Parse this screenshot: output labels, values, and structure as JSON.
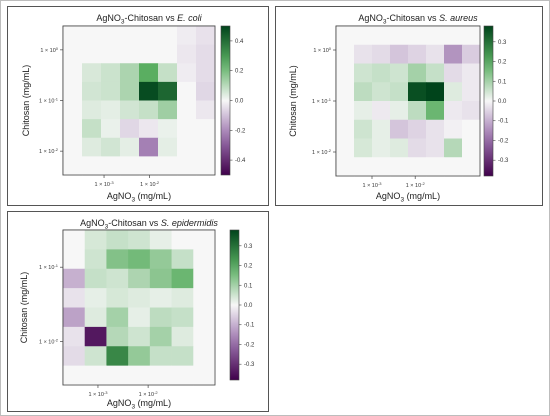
{
  "colors": {
    "negative_max": "#40004b",
    "negative_mid": "#9970ab",
    "neutral": "#f7f7f7",
    "positive_mid": "#5aae61",
    "positive_max": "#00441b"
  },
  "chart_data": [
    {
      "type": "heatmap",
      "title_prefix": "AgNO",
      "title_sub": "3",
      "title_mid": "-Chitosan vs ",
      "title_species": "E. coli",
      "xlabel_prefix": "AgNO",
      "xlabel_sub": "3",
      "xlabel_suffix": " (mg/mL)",
      "ylabel": "Chitosan (mg/mL)",
      "x_scale": "log",
      "y_scale": "log",
      "x_ticks": [
        {
          "label_base": "1 × 10",
          "label_exp": "-3"
        },
        {
          "label_base": "1 × 10",
          "label_exp": "-2"
        }
      ],
      "y_ticks": [
        {
          "label_base": "1 × 10",
          "label_exp": "0"
        },
        {
          "label_base": "1 × 10",
          "label_exp": "-1"
        },
        {
          "label_base": "1 × 10",
          "label_exp": "-2"
        }
      ],
      "colorbar_ticks": [
        "0.4",
        "0.2",
        "0.0",
        "-0.2",
        "-0.4"
      ],
      "colorbar_tick_values": [
        0.4,
        0.2,
        0.0,
        -0.2,
        -0.4
      ],
      "vmin": -0.5,
      "vmax": 0.5,
      "values": [
        [
          0,
          0,
          0,
          0,
          0,
          0,
          -0.02,
          -0.04
        ],
        [
          0,
          0,
          0,
          0,
          0,
          0,
          -0.03,
          -0.05
        ],
        [
          0,
          0.05,
          0.07,
          0.12,
          0.25,
          0.08,
          -0.02,
          -0.05
        ],
        [
          0,
          0.06,
          0.07,
          0.12,
          0.48,
          0.42,
          0,
          -0.06
        ],
        [
          0,
          0.04,
          0.03,
          0.06,
          0.08,
          0.14,
          0,
          -0.03
        ],
        [
          0,
          0.08,
          0.02,
          -0.06,
          -0.03,
          0.02,
          0,
          0
        ],
        [
          0,
          0.04,
          0.06,
          0.03,
          -0.22,
          0.03,
          0,
          0
        ],
        [
          0,
          0,
          0,
          0,
          0,
          0,
          0,
          0
        ]
      ]
    },
    {
      "type": "heatmap",
      "title_prefix": "AgNO",
      "title_sub": "3",
      "title_mid": "-Chitosan vs ",
      "title_species": "S. aureus",
      "xlabel_prefix": "AgNO",
      "xlabel_sub": "3",
      "xlabel_suffix": " (mg/mL)",
      "ylabel": "Chitosan (mg/mL)",
      "x_scale": "log",
      "y_scale": "log",
      "x_ticks": [
        {
          "label_base": "1 × 10",
          "label_exp": "-3"
        },
        {
          "label_base": "1 × 10",
          "label_exp": "-2"
        }
      ],
      "y_ticks": [
        {
          "label_base": "1 × 10",
          "label_exp": "0"
        },
        {
          "label_base": "1 × 10",
          "label_exp": "-1"
        },
        {
          "label_base": "1 × 10",
          "label_exp": "-2"
        }
      ],
      "colorbar_ticks": [
        "0.3",
        "0.2",
        "0.1",
        "0.0",
        "-0.1",
        "-0.2",
        "-0.3"
      ],
      "colorbar_tick_values": [
        0.3,
        0.2,
        0.1,
        0.0,
        -0.1,
        -0.2,
        -0.3
      ],
      "vmin": -0.38,
      "vmax": 0.38,
      "values": [
        [
          0,
          0,
          0,
          0,
          0,
          0,
          0,
          0
        ],
        [
          0,
          -0.03,
          -0.04,
          -0.07,
          -0.05,
          -0.03,
          -0.14,
          -0.06
        ],
        [
          0,
          0.05,
          0.06,
          0.05,
          0.1,
          0.06,
          -0.04,
          -0.02
        ],
        [
          0,
          0.07,
          0.05,
          0.06,
          0.36,
          0.38,
          0.03,
          -0.02
        ],
        [
          0,
          0.02,
          -0.02,
          0.02,
          0.07,
          0.17,
          -0.02,
          -0.03
        ],
        [
          0,
          0.05,
          0.02,
          -0.07,
          -0.05,
          -0.03,
          -0.01,
          0
        ],
        [
          0,
          0.04,
          0.02,
          0.03,
          -0.04,
          -0.03,
          0.08,
          0
        ],
        [
          0,
          0,
          0,
          0,
          0,
          0,
          0,
          0
        ]
      ]
    },
    {
      "type": "heatmap",
      "title_prefix": "AgNO",
      "title_sub": "3",
      "title_mid": "-Chitosan vs ",
      "title_species": "S. epidermidis",
      "xlabel_prefix": "AgNO",
      "xlabel_sub": "3",
      "xlabel_suffix": " (mg/mL)",
      "ylabel": "Chitosan (mg/mL)",
      "x_scale": "log",
      "y_scale": "log",
      "x_ticks": [
        {
          "label_base": "1 × 10",
          "label_exp": "-3"
        },
        {
          "label_base": "1 × 10",
          "label_exp": "-2"
        }
      ],
      "y_ticks": [
        {
          "label_base": "1 × 10",
          "label_exp": "-1"
        },
        {
          "label_base": "1 × 10",
          "label_exp": "-2"
        }
      ],
      "colorbar_ticks": [
        "0.3",
        "0.2",
        "0.1",
        "0.0",
        "-0.1",
        "-0.2",
        "-0.3"
      ],
      "colorbar_tick_values": [
        0.3,
        0.2,
        0.1,
        0.0,
        -0.1,
        -0.2,
        -0.3
      ],
      "vmin": -0.38,
      "vmax": 0.38,
      "values": [
        [
          0,
          0.04,
          0.06,
          0.05,
          0.02,
          0,
          0
        ],
        [
          0,
          0.05,
          0.14,
          0.16,
          0.12,
          0.06,
          0
        ],
        [
          -0.1,
          0.06,
          0.05,
          0.09,
          0.13,
          0.17,
          0
        ],
        [
          -0.03,
          0.02,
          0.04,
          0.03,
          0.02,
          0.03,
          0
        ],
        [
          -0.12,
          0.03,
          0.1,
          0.02,
          0.07,
          0.06,
          0
        ],
        [
          -0.03,
          -0.34,
          0.08,
          0.05,
          0.1,
          0.03,
          0
        ],
        [
          -0.04,
          0.05,
          0.26,
          0.12,
          0.06,
          0.06,
          0
        ],
        [
          0,
          0,
          0,
          0,
          0,
          0,
          0
        ]
      ]
    }
  ]
}
